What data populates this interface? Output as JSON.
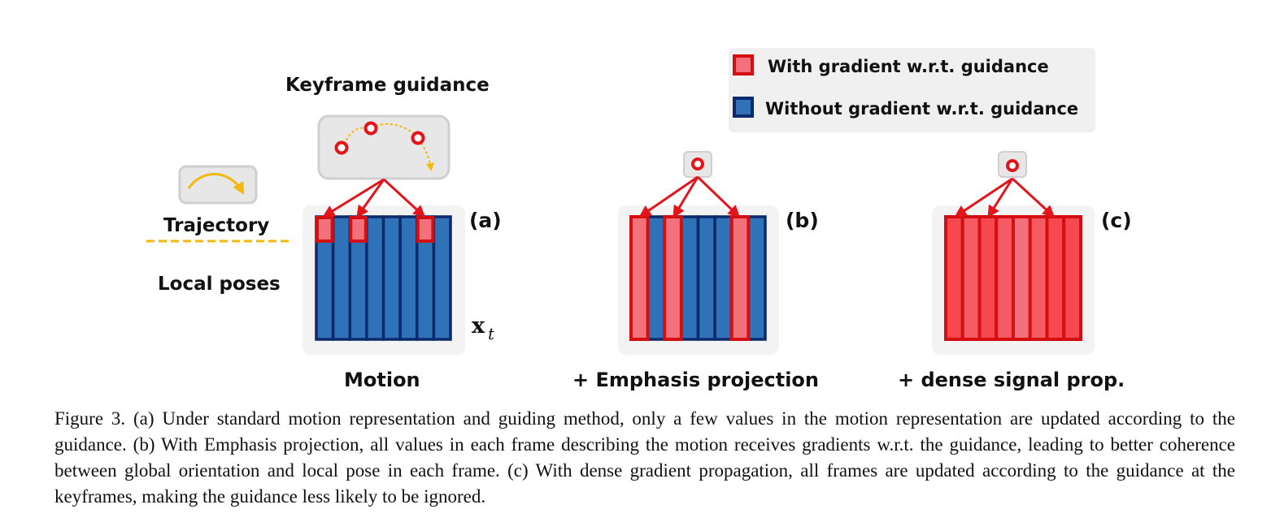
{
  "legend": {
    "with_gradient": "With gradient w.r.t. guidance",
    "without_gradient": "Without gradient w.r.t. guidance"
  },
  "labels": {
    "keyframe_guidance": "Keyframe guidance",
    "trajectory": "Trajectory",
    "local_poses": "Local poses",
    "xt_base": "x",
    "xt_sub": "t",
    "panel_a": "(a)",
    "panel_b": "(b)",
    "panel_c": "(c)",
    "motion": "Motion",
    "emphasis_projection": "+ Emphasis projection",
    "dense_signal": "+ dense signal prop."
  },
  "panels": {
    "a": {
      "highlighted_cells": [
        0,
        2,
        6
      ],
      "highlight_mode": "top_cells"
    },
    "b": {
      "highlighted_columns": [
        0,
        2,
        6
      ],
      "highlight_mode": "full_columns"
    },
    "c": {
      "highlighted_columns": [
        0,
        1,
        2,
        3,
        4,
        5,
        6,
        7
      ],
      "highlight_mode": "full_columns"
    }
  },
  "colors": {
    "blue_fill": "#2f72b8",
    "blue_border": "#0b2a6b",
    "red_fill": "#f2717a",
    "red_fill_bright": "#f7474f",
    "red_border": "#d40f12",
    "guide_yellow": "#f1b80e",
    "box_gray": "#e7e7e7"
  },
  "caption": "Figure 3. (a) Under standard motion representation and guiding method, only a few values in the motion representation are updated according to the guidance. (b) With Emphasis projection, all values in each frame describing the motion receives gradients w.r.t. the guidance, leading to better coherence between global orientation and local pose in each frame. (c) With dense gradient propagation, all frames are updated according to the guidance at the keyframes, making the guidance less likely to be ignored."
}
